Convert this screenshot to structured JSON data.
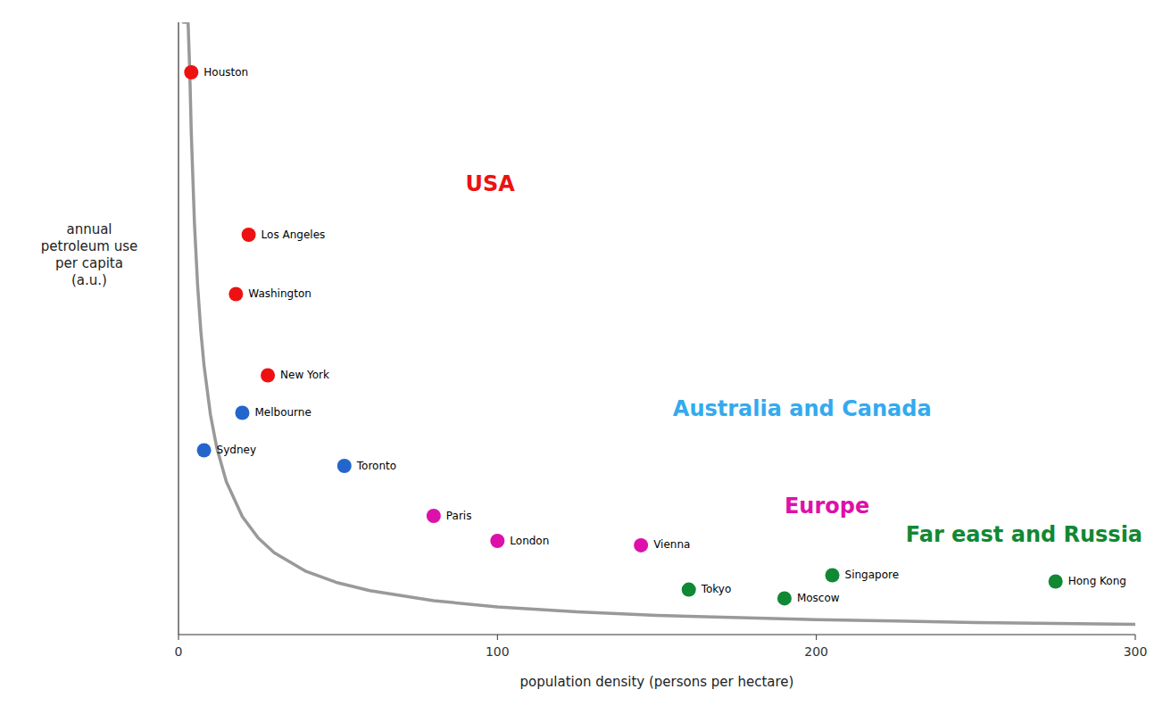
{
  "chart_data": {
    "type": "scatter",
    "xlabel": "population density (persons per hectare)",
    "ylabel": "annual\npetroleum use\nper capita\n(a.u.)",
    "xlim": [
      0,
      300
    ],
    "ylim": [
      0,
      980
    ],
    "xticks": [
      0,
      100,
      200,
      300
    ],
    "yticks": [],
    "tick_labels": "x",
    "grid": false,
    "series": [
      {
        "type": "line",
        "color": "#999999",
        "x": [
          1.5,
          2,
          3,
          3.5,
          4,
          5,
          6,
          7,
          8,
          10,
          12,
          15,
          20,
          25,
          30,
          40,
          50,
          60,
          80,
          100,
          125,
          150,
          200,
          250,
          300
        ],
        "values": [
          980,
          980,
          980,
          906.77,
          804.09,
          657.79,
          558.24,
          485.93,
          430.9,
          352.5,
          299.15,
          244.72,
          188.9,
          154.53,
          131.14,
          101.23,
          82.81,
          70.28,
          54.25,
          44.38,
          36.3,
          30.81,
          23.78,
          19.45,
          16.51
        ]
      },
      {
        "type": "scatter",
        "marker": "circle",
        "labels": [
          "Houston",
          "Los Angeles",
          "Washington",
          "New York",
          "Melbourne",
          "Sydney",
          "Toronto",
          "Paris",
          "London",
          "Vienna",
          "Tokyo",
          "Singapore",
          "Moscow",
          "Hong Kong"
        ],
        "x": [
          4,
          22,
          18,
          28,
          20,
          8,
          52,
          80,
          100,
          145,
          160,
          205,
          190,
          275
        ],
        "values": [
          900,
          640,
          545,
          415,
          355,
          295,
          270,
          190,
          150,
          143,
          72,
          95,
          58,
          85
        ],
        "colors": [
          "#ee1111",
          "#ee1111",
          "#ee1111",
          "#ee1111",
          "#2266cc",
          "#2266cc",
          "#2266cc",
          "#dd11aa",
          "#dd11aa",
          "#dd11aa",
          "#118833",
          "#118833",
          "#118833",
          "#118833"
        ]
      }
    ],
    "annotations": [
      {
        "text": "USA",
        "x": 90,
        "y": 720,
        "color": "#ee1111"
      },
      {
        "text": "Australia and Canada",
        "x": 155,
        "y": 360,
        "color": "#33aaee"
      },
      {
        "text": "Europe",
        "x": 190,
        "y": 205,
        "color": "#dd11aa"
      },
      {
        "text": "Far east and Russia",
        "x": 228,
        "y": 158,
        "color": "#118833"
      }
    ]
  }
}
